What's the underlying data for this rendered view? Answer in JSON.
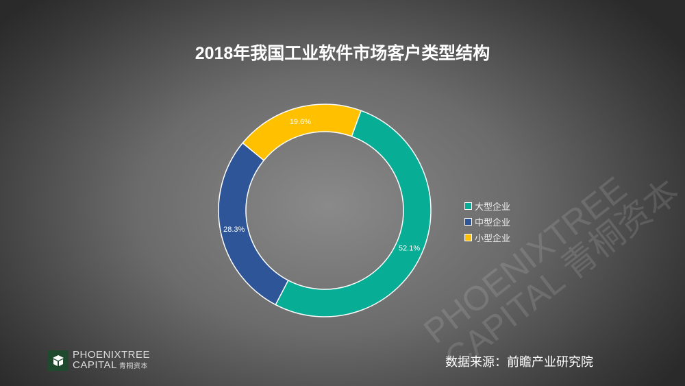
{
  "chart_data": {
    "type": "pie",
    "variant": "donut",
    "title": "2018年我国工业软件市场客户类型结构",
    "categories": [
      "大型企业",
      "中型企业",
      "小型企业"
    ],
    "values": [
      52.1,
      28.3,
      19.6
    ],
    "labels": [
      "52.1%",
      "28.3%",
      "19.6%"
    ],
    "colors": [
      "#07ad94",
      "#2e5597",
      "#ffc000"
    ],
    "legend_position": "right"
  },
  "source": "数据来源：前瞻产业研究院",
  "logo": {
    "line1": "PHOENIXTREE",
    "line2": "CAPITAL",
    "cn": "青桐资本"
  },
  "watermark": {
    "line1": "PHOENIXTREE",
    "line2": "CAPITAL 青桐资本"
  }
}
